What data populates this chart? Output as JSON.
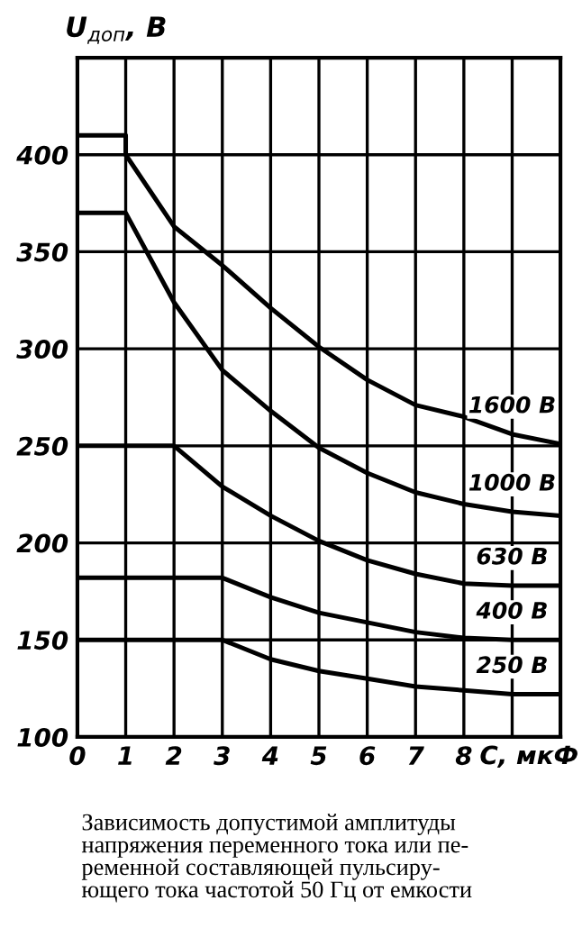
{
  "chart_data": {
    "type": "line",
    "ylabel": "U$_{доп}$, В",
    "xlabel": "С, мкФ",
    "xlim": [
      0,
      10
    ],
    "xticks": [
      0,
      1,
      2,
      3,
      4,
      5,
      6,
      7,
      8,
      {
        "value": 9,
        "label": null
      },
      {
        "value": 10,
        "label": null
      }
    ],
    "ylim": [
      100,
      450
    ],
    "yticks": [
      100,
      150,
      200,
      250,
      300,
      350,
      400,
      {
        "value": 450,
        "label": null
      }
    ],
    "grid": true,
    "legend": false,
    "marker": "none",
    "line_style": "solid",
    "series": [
      {
        "name": "1600 В",
        "color": "#000000",
        "x": [
          0,
          1,
          1,
          2,
          3,
          4,
          5,
          6,
          7,
          8,
          9,
          10
        ],
        "values": [
          410,
          410,
          400,
          363,
          343,
          321,
          301,
          284,
          271,
          265,
          256,
          251
        ]
      },
      {
        "name": "1000 В",
        "color": "#000000",
        "x": [
          0,
          1,
          2,
          3,
          4,
          5,
          6,
          7,
          8,
          9,
          10
        ],
        "values": [
          370,
          370,
          324,
          289,
          268,
          249,
          236,
          226,
          220,
          216,
          214
        ]
      },
      {
        "name": "630 В",
        "color": "#000000",
        "x": [
          0,
          2,
          3,
          4,
          5,
          6,
          7,
          8,
          9,
          10
        ],
        "values": [
          250,
          250,
          229,
          214,
          201,
          191,
          184,
          179,
          178,
          178
        ]
      },
      {
        "name": "400 В",
        "color": "#000000",
        "x": [
          0,
          3,
          4,
          5,
          6,
          7,
          8,
          9,
          10
        ],
        "values": [
          182,
          182,
          172,
          164,
          159,
          154,
          151,
          150,
          150
        ]
      },
      {
        "name": "250 В",
        "color": "#000000",
        "x": [
          0,
          3,
          4,
          5,
          6,
          7,
          8,
          9,
          10
        ],
        "values": [
          150,
          150,
          140,
          134,
          130,
          126,
          124,
          122,
          122
        ]
      }
    ],
    "annotations": [
      "Зависимость допустимой амплитуды\nнапряжения переменного тока или пе-\nременной составляющей пульсиру-\nющего тока частотой 50 Гц от емкости"
    ]
  }
}
